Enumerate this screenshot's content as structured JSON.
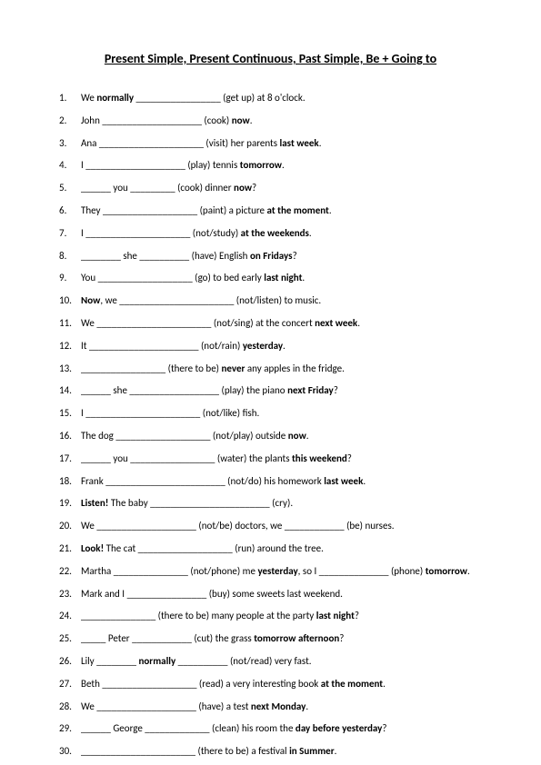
{
  "title": "Present Simple, Present Continuous, Past Simple, Be + Going to",
  "colors": {
    "text": "#000000",
    "bg": "#ffffff"
  },
  "typography": {
    "title_fontsize": 14,
    "body_fontsize": 11,
    "font_family": "Calibri"
  },
  "items": [
    {
      "parts": [
        "We ",
        {
          "b": "normally"
        },
        " _________________ (get up) at 8 o'clock."
      ]
    },
    {
      "parts": [
        "John ____________________ (cook) ",
        {
          "b": "now"
        },
        "."
      ]
    },
    {
      "parts": [
        "Ana _____________________ (visit) her parents ",
        {
          "b": "last week"
        },
        "."
      ]
    },
    {
      "parts": [
        "I ____________________ (play) tennis ",
        {
          "b": "tomorrow"
        },
        "."
      ]
    },
    {
      "parts": [
        "______ you _________ (cook) dinner ",
        {
          "b": "now"
        },
        "?"
      ]
    },
    {
      "parts": [
        "They ___________________ (paint) a picture ",
        {
          "b": "at the moment"
        },
        "."
      ]
    },
    {
      "parts": [
        "I _____________________ (not/study) ",
        {
          "b": "at the weekends"
        },
        "."
      ]
    },
    {
      "parts": [
        "________ she __________ (have) English ",
        {
          "b": "on Fridays"
        },
        "?"
      ]
    },
    {
      "parts": [
        "You ___________________ (go) to bed early ",
        {
          "b": "last night"
        },
        "."
      ]
    },
    {
      "parts": [
        {
          "b": "Now"
        },
        ", we _______________________ (not/listen) to music."
      ]
    },
    {
      "parts": [
        "We _______________________ (not/sing) at the concert ",
        {
          "b": "next week"
        },
        "."
      ]
    },
    {
      "parts": [
        "It ______________________ (not/rain) ",
        {
          "b": "yesterday"
        },
        "."
      ]
    },
    {
      "parts": [
        "_________________ (there to be) ",
        {
          "b": "never"
        },
        " any apples in the fridge."
      ]
    },
    {
      "parts": [
        "______ she __________________ (play) the piano ",
        {
          "b": "next Friday"
        },
        "?"
      ]
    },
    {
      "parts": [
        "I _______________________ (not/like) fish."
      ]
    },
    {
      "parts": [
        "The dog ___________________ (not/play) outside ",
        {
          "b": "now"
        },
        "."
      ]
    },
    {
      "parts": [
        "______ you _________________ (water) the plants ",
        {
          "b": "this weekend"
        },
        "?"
      ]
    },
    {
      "parts": [
        "Frank ________________________ (not/do) his homework ",
        {
          "b": "last week"
        },
        "."
      ]
    },
    {
      "parts": [
        {
          "b": "Listen!"
        },
        " The baby ________________________ (cry)."
      ]
    },
    {
      "parts": [
        "We ____________________ (not/be) doctors, we ____________ (be) nurses."
      ]
    },
    {
      "parts": [
        {
          "b": "Look!"
        },
        " The cat ___________________ (run) around the tree."
      ]
    },
    {
      "parts": [
        "Martha _______________ (not/phone) me ",
        {
          "b": "yesterday"
        },
        ", so I ______________ (phone) ",
        {
          "b": "tomorrow"
        },
        "."
      ]
    },
    {
      "parts": [
        "Mark and I ________________ (buy) some sweets last weekend."
      ]
    },
    {
      "parts": [
        "_______________ (there to be) many people at the party ",
        {
          "b": "last night"
        },
        "?"
      ]
    },
    {
      "parts": [
        "_____ Peter ____________ (cut) the grass ",
        {
          "b": "tomorrow afternoon"
        },
        "?"
      ]
    },
    {
      "parts": [
        "Lily ________ ",
        {
          "b": "normally"
        },
        " __________ (not/read) very fast."
      ]
    },
    {
      "parts": [
        "Beth ___________________ (read) a very interesting book ",
        {
          "b": "at the moment"
        },
        "."
      ]
    },
    {
      "parts": [
        "We ____________________ (have) a test ",
        {
          "b": "next Monday"
        },
        "."
      ]
    },
    {
      "parts": [
        "______ George _____________ (clean) his room the ",
        {
          "b": "day before yesterday"
        },
        "?"
      ]
    },
    {
      "parts": [
        "_______________________ (there to be) a festival ",
        {
          "b": "in Summer"
        },
        "."
      ]
    }
  ]
}
